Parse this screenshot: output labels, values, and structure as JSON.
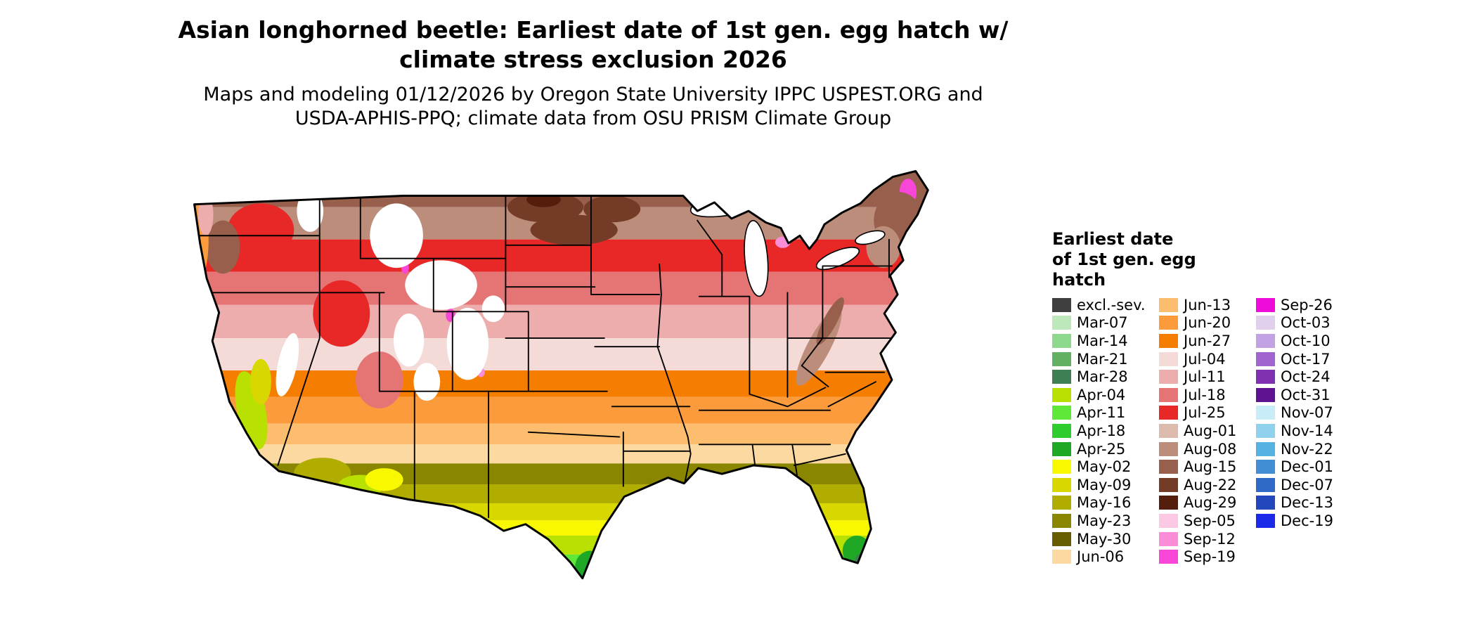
{
  "title": {
    "line1": "Asian longhorned beetle: Earliest date of 1st gen. egg hatch w/",
    "line2": "climate stress exclusion 2026"
  },
  "subtitle": {
    "line1": "Maps and modeling 01/12/2026 by Oregon State University IPPC USPEST.ORG and",
    "line2": "USDA-APHIS-PPQ; climate data from OSU PRISM Climate Group"
  },
  "legend": {
    "title_lines": [
      "Earliest date",
      "of 1st gen. egg",
      "hatch"
    ],
    "columns": [
      {
        "items": [
          {
            "label": "excl.-sev.",
            "color": "#3f3f3f"
          },
          {
            "label": "Mar-07",
            "color": "#bce8bc"
          },
          {
            "label": "Mar-14",
            "color": "#8ed88e"
          },
          {
            "label": "Mar-21",
            "color": "#63b063"
          },
          {
            "label": "Mar-28",
            "color": "#3f7f54"
          },
          {
            "label": "Apr-04",
            "color": "#b8e000"
          },
          {
            "label": "Apr-11",
            "color": "#5fe839"
          },
          {
            "label": "Apr-18",
            "color": "#2ecc2e"
          },
          {
            "label": "Apr-25",
            "color": "#1fa826"
          },
          {
            "label": "May-02",
            "color": "#f8f800"
          },
          {
            "label": "May-09",
            "color": "#d8d800"
          },
          {
            "label": "May-16",
            "color": "#b0ac00"
          },
          {
            "label": "May-23",
            "color": "#8a8600"
          },
          {
            "label": "May-30",
            "color": "#675c00"
          },
          {
            "label": "Jun-06",
            "color": "#fcd9a0"
          }
        ]
      },
      {
        "items": [
          {
            "label": "Jun-13",
            "color": "#fdbd6e"
          },
          {
            "label": "Jun-20",
            "color": "#fb9b3c"
          },
          {
            "label": "Jun-27",
            "color": "#f57d00"
          },
          {
            "label": "Jul-04",
            "color": "#f5dbd8"
          },
          {
            "label": "Jul-11",
            "color": "#eeadad"
          },
          {
            "label": "Jul-18",
            "color": "#e57575"
          },
          {
            "label": "Jul-25",
            "color": "#e82727"
          },
          {
            "label": "Aug-01",
            "color": "#ddbbac"
          },
          {
            "label": "Aug-08",
            "color": "#bc8d7a"
          },
          {
            "label": "Aug-15",
            "color": "#975f4c"
          },
          {
            "label": "Aug-22",
            "color": "#743c26"
          },
          {
            "label": "Aug-29",
            "color": "#541d0c"
          },
          {
            "label": "Sep-05",
            "color": "#fcc8e4"
          },
          {
            "label": "Sep-12",
            "color": "#fb8cd8"
          },
          {
            "label": "Sep-19",
            "color": "#f846d8"
          }
        ]
      },
      {
        "items": [
          {
            "label": "Sep-26",
            "color": "#ef0cd8"
          },
          {
            "label": "Oct-03",
            "color": "#e0d0ee"
          },
          {
            "label": "Oct-10",
            "color": "#c2a2e2"
          },
          {
            "label": "Oct-17",
            "color": "#a065cf"
          },
          {
            "label": "Oct-24",
            "color": "#8031b0"
          },
          {
            "label": "Oct-31",
            "color": "#5f1390"
          },
          {
            "label": "Nov-07",
            "color": "#c8ecf8"
          },
          {
            "label": "Nov-14",
            "color": "#90d2ee"
          },
          {
            "label": "Nov-22",
            "color": "#55b2e2"
          },
          {
            "label": "Dec-01",
            "color": "#418ed4"
          },
          {
            "label": "Dec-07",
            "color": "#2f6ac8"
          },
          {
            "label": "Dec-13",
            "color": "#2348bc"
          },
          {
            "label": "Dec-19",
            "color": "#1b2ae8"
          }
        ]
      }
    ]
  }
}
